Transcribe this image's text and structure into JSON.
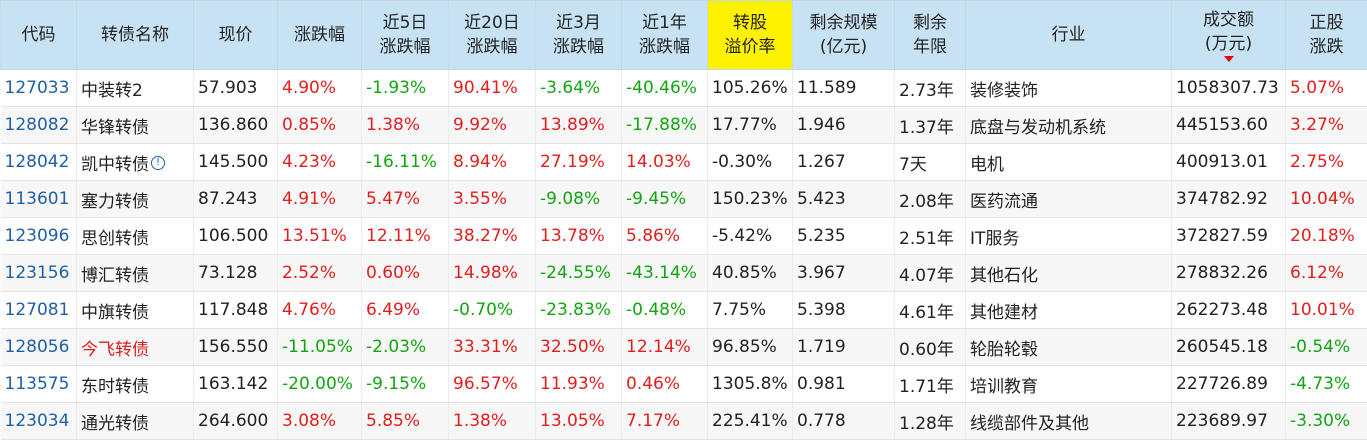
{
  "colors": {
    "positive": "#e41d1d",
    "negative": "#11a611",
    "link": "#1f5fa8",
    "header_bg": "#c7e2f3",
    "highlight": "#fff200"
  },
  "columns": [
    {
      "l1": "代码",
      "l2": ""
    },
    {
      "l1": "转债名称",
      "l2": ""
    },
    {
      "l1": "现价",
      "l2": ""
    },
    {
      "l1": "涨跌幅",
      "l2": ""
    },
    {
      "l1": "近5日",
      "l2": "涨跌幅"
    },
    {
      "l1": "近20日",
      "l2": "涨跌幅"
    },
    {
      "l1": "近3月",
      "l2": "涨跌幅"
    },
    {
      "l1": "近1年",
      "l2": "涨跌幅"
    },
    {
      "l1": "转股",
      "l2": "溢价率"
    },
    {
      "l1": "剩余规模",
      "l2": "(亿元)"
    },
    {
      "l1": "剩余",
      "l2": "年限"
    },
    {
      "l1": "行业",
      "l2": ""
    },
    {
      "l1": "成交额",
      "l2": "(万元)"
    },
    {
      "l1": "正股",
      "l2": "涨跌"
    }
  ],
  "sort_icon": "sort-desc-icon",
  "rows": [
    {
      "code": "127033",
      "name": "中装转2",
      "price": "57.903",
      "chg": "4.90%",
      "d5": "-1.93%",
      "d20": "90.41%",
      "m3": "-3.64%",
      "y1": "-40.46%",
      "premium": "105.26%",
      "size": "11.589",
      "years": "2.73年",
      "industry": "装修装饰",
      "turnover": "1058307.73",
      "stock": "5.07%"
    },
    {
      "code": "128082",
      "name": "华锋转债",
      "price": "136.860",
      "chg": "0.85%",
      "d5": "1.38%",
      "d20": "9.92%",
      "m3": "13.89%",
      "y1": "-17.88%",
      "premium": "17.77%",
      "size": "1.946",
      "years": "1.37年",
      "industry": "底盘与发动机系统",
      "turnover": "445153.60",
      "stock": "3.27%"
    },
    {
      "code": "128042",
      "name": "凯中转债",
      "info": "!",
      "price": "145.500",
      "chg": "4.23%",
      "d5": "-16.11%",
      "d20": "8.94%",
      "m3": "27.19%",
      "y1": "14.03%",
      "premium": "-0.30%",
      "size": "1.267",
      "years": "7天",
      "industry": "电机",
      "turnover": "400913.01",
      "stock": "2.75%"
    },
    {
      "code": "113601",
      "name": "塞力转债",
      "price": "87.243",
      "chg": "4.91%",
      "d5": "5.47%",
      "d20": "3.55%",
      "m3": "-9.08%",
      "y1": "-9.45%",
      "premium": "150.23%",
      "size": "5.423",
      "years": "2.08年",
      "industry": "医药流通",
      "turnover": "374782.92",
      "stock": "10.04%"
    },
    {
      "code": "123096",
      "name": "思创转债",
      "price": "106.500",
      "chg": "13.51%",
      "d5": "12.11%",
      "d20": "38.27%",
      "m3": "13.78%",
      "y1": "5.86%",
      "premium": "-5.42%",
      "size": "5.235",
      "years": "2.51年",
      "industry": "IT服务",
      "turnover": "372827.59",
      "stock": "20.18%"
    },
    {
      "code": "123156",
      "name": "博汇转债",
      "price": "73.128",
      "chg": "2.52%",
      "d5": "0.60%",
      "d20": "14.98%",
      "m3": "-24.55%",
      "y1": "-43.14%",
      "premium": "40.85%",
      "size": "3.967",
      "years": "4.07年",
      "industry": "其他石化",
      "turnover": "278832.26",
      "stock": "6.12%"
    },
    {
      "code": "127081",
      "name": "中旗转债",
      "price": "117.848",
      "chg": "4.76%",
      "d5": "6.49%",
      "d20": "-0.70%",
      "m3": "-23.83%",
      "y1": "-0.48%",
      "premium": "7.75%",
      "size": "5.398",
      "years": "4.61年",
      "industry": "其他建材",
      "turnover": "262273.48",
      "stock": "10.01%"
    },
    {
      "code": "128056",
      "name": "今飞转债",
      "price": "156.550",
      "chg": "-11.05%",
      "d5": "-2.03%",
      "d20": "33.31%",
      "m3": "32.50%",
      "y1": "12.14%",
      "premium": "96.85%",
      "size": "1.719",
      "years": "0.60年",
      "industry": "轮胎轮毂",
      "turnover": "260545.18",
      "stock": "-0.54%"
    },
    {
      "code": "113575",
      "name": "东时转债",
      "price": "163.142",
      "chg": "-20.00%",
      "d5": "-9.15%",
      "d20": "96.57%",
      "m3": "11.93%",
      "y1": "0.46%",
      "premium": "1305.8%",
      "size": "0.981",
      "years": "1.71年",
      "industry": "培训教育",
      "turnover": "227726.89",
      "stock": "-4.73%"
    },
    {
      "code": "123034",
      "name": "通光转债",
      "price": "264.600",
      "chg": "3.08%",
      "d5": "5.85%",
      "d20": "1.38%",
      "m3": "13.05%",
      "y1": "7.17%",
      "premium": "225.41%",
      "size": "0.778",
      "years": "1.28年",
      "industry": "线缆部件及其他",
      "turnover": "223689.97",
      "stock": "-3.30%"
    }
  ]
}
